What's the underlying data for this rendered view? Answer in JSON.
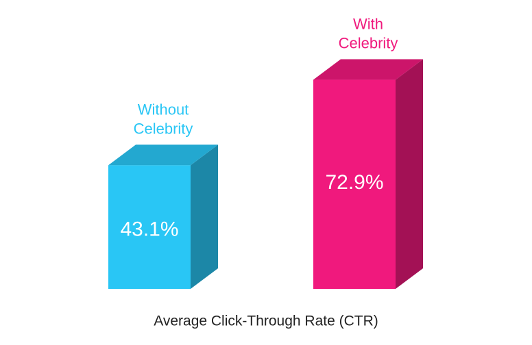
{
  "chart_data": {
    "type": "bar3d",
    "title": "Average Click-Through Rate (CTR)",
    "categories": [
      "Without Celebrity",
      "With Celebrity"
    ],
    "values": [
      43.1,
      72.9
    ],
    "value_labels": [
      "43.1%",
      "72.9%"
    ],
    "colors": [
      "#29c6f5",
      "#f0197d"
    ]
  }
}
